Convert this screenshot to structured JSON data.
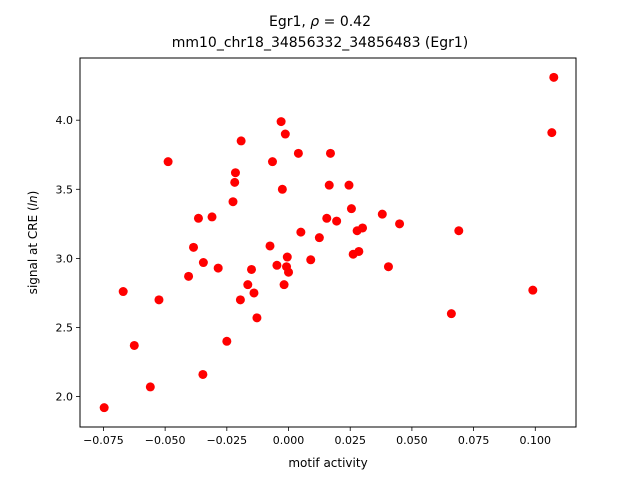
{
  "chart_data": {
    "type": "scatter",
    "title_prefix": "Egr1, ",
    "title_rho": "ρ",
    "title_rho_suffix": " = 0.42",
    "subtitle": "mm10_chr18_34856332_34856483 (Egr1)",
    "xlabel": "motif activity",
    "ylabel_prefix": "signal at CRE (",
    "ylabel_italic": "ln",
    "ylabel_suffix": ")",
    "xlim": [
      -0.0845,
      0.1165
    ],
    "ylim": [
      1.78,
      4.45
    ],
    "x_ticks": [
      -0.075,
      -0.05,
      -0.025,
      0.0,
      0.025,
      0.05,
      0.075,
      0.1
    ],
    "x_tick_labels": [
      "−0.075",
      "−0.050",
      "−0.025",
      "0.000",
      "0.025",
      "0.050",
      "0.075",
      "0.100"
    ],
    "y_ticks": [
      2.0,
      2.5,
      3.0,
      3.5,
      4.0
    ],
    "y_tick_labels": [
      "2.0",
      "2.5",
      "3.0",
      "3.5",
      "4.0"
    ],
    "marker_color": "#ff0000",
    "grid": false,
    "legend": "none",
    "points": [
      {
        "x": -0.0747,
        "y": 1.92
      },
      {
        "x": -0.067,
        "y": 2.76
      },
      {
        "x": -0.0625,
        "y": 2.37
      },
      {
        "x": -0.056,
        "y": 2.07
      },
      {
        "x": -0.0525,
        "y": 2.7
      },
      {
        "x": -0.0488,
        "y": 3.7
      },
      {
        "x": -0.0405,
        "y": 2.87
      },
      {
        "x": -0.0385,
        "y": 3.08
      },
      {
        "x": -0.0365,
        "y": 3.29
      },
      {
        "x": -0.0347,
        "y": 2.16
      },
      {
        "x": -0.0345,
        "y": 2.97
      },
      {
        "x": -0.031,
        "y": 3.3
      },
      {
        "x": -0.0285,
        "y": 2.93
      },
      {
        "x": -0.025,
        "y": 2.4
      },
      {
        "x": -0.0225,
        "y": 3.41
      },
      {
        "x": -0.0218,
        "y": 3.55
      },
      {
        "x": -0.0215,
        "y": 3.62
      },
      {
        "x": -0.0195,
        "y": 2.7
      },
      {
        "x": -0.0192,
        "y": 3.85
      },
      {
        "x": -0.0165,
        "y": 2.81
      },
      {
        "x": -0.015,
        "y": 2.92
      },
      {
        "x": -0.014,
        "y": 2.75
      },
      {
        "x": -0.0128,
        "y": 2.57
      },
      {
        "x": -0.0075,
        "y": 3.09
      },
      {
        "x": -0.0065,
        "y": 3.7
      },
      {
        "x": -0.0047,
        "y": 2.95
      },
      {
        "x": -0.003,
        "y": 3.99
      },
      {
        "x": -0.0025,
        "y": 3.5
      },
      {
        "x": -0.0018,
        "y": 2.81
      },
      {
        "x": -0.0013,
        "y": 3.9
      },
      {
        "x": -0.0008,
        "y": 2.94
      },
      {
        "x": -0.0005,
        "y": 3.01
      },
      {
        "x": 0.0,
        "y": 2.9
      },
      {
        "x": 0.004,
        "y": 3.76
      },
      {
        "x": 0.005,
        "y": 3.19
      },
      {
        "x": 0.009,
        "y": 2.99
      },
      {
        "x": 0.0125,
        "y": 3.15
      },
      {
        "x": 0.0155,
        "y": 3.29
      },
      {
        "x": 0.0165,
        "y": 3.53
      },
      {
        "x": 0.017,
        "y": 3.76
      },
      {
        "x": 0.0195,
        "y": 3.27
      },
      {
        "x": 0.0245,
        "y": 3.53
      },
      {
        "x": 0.0255,
        "y": 3.36
      },
      {
        "x": 0.0262,
        "y": 3.03
      },
      {
        "x": 0.0278,
        "y": 3.2
      },
      {
        "x": 0.0285,
        "y": 3.05
      },
      {
        "x": 0.03,
        "y": 3.22
      },
      {
        "x": 0.038,
        "y": 3.32
      },
      {
        "x": 0.0405,
        "y": 2.94
      },
      {
        "x": 0.045,
        "y": 3.25
      },
      {
        "x": 0.066,
        "y": 2.6
      },
      {
        "x": 0.069,
        "y": 3.2
      },
      {
        "x": 0.099,
        "y": 2.77
      },
      {
        "x": 0.1067,
        "y": 3.91
      },
      {
        "x": 0.1075,
        "y": 4.31
      }
    ]
  }
}
